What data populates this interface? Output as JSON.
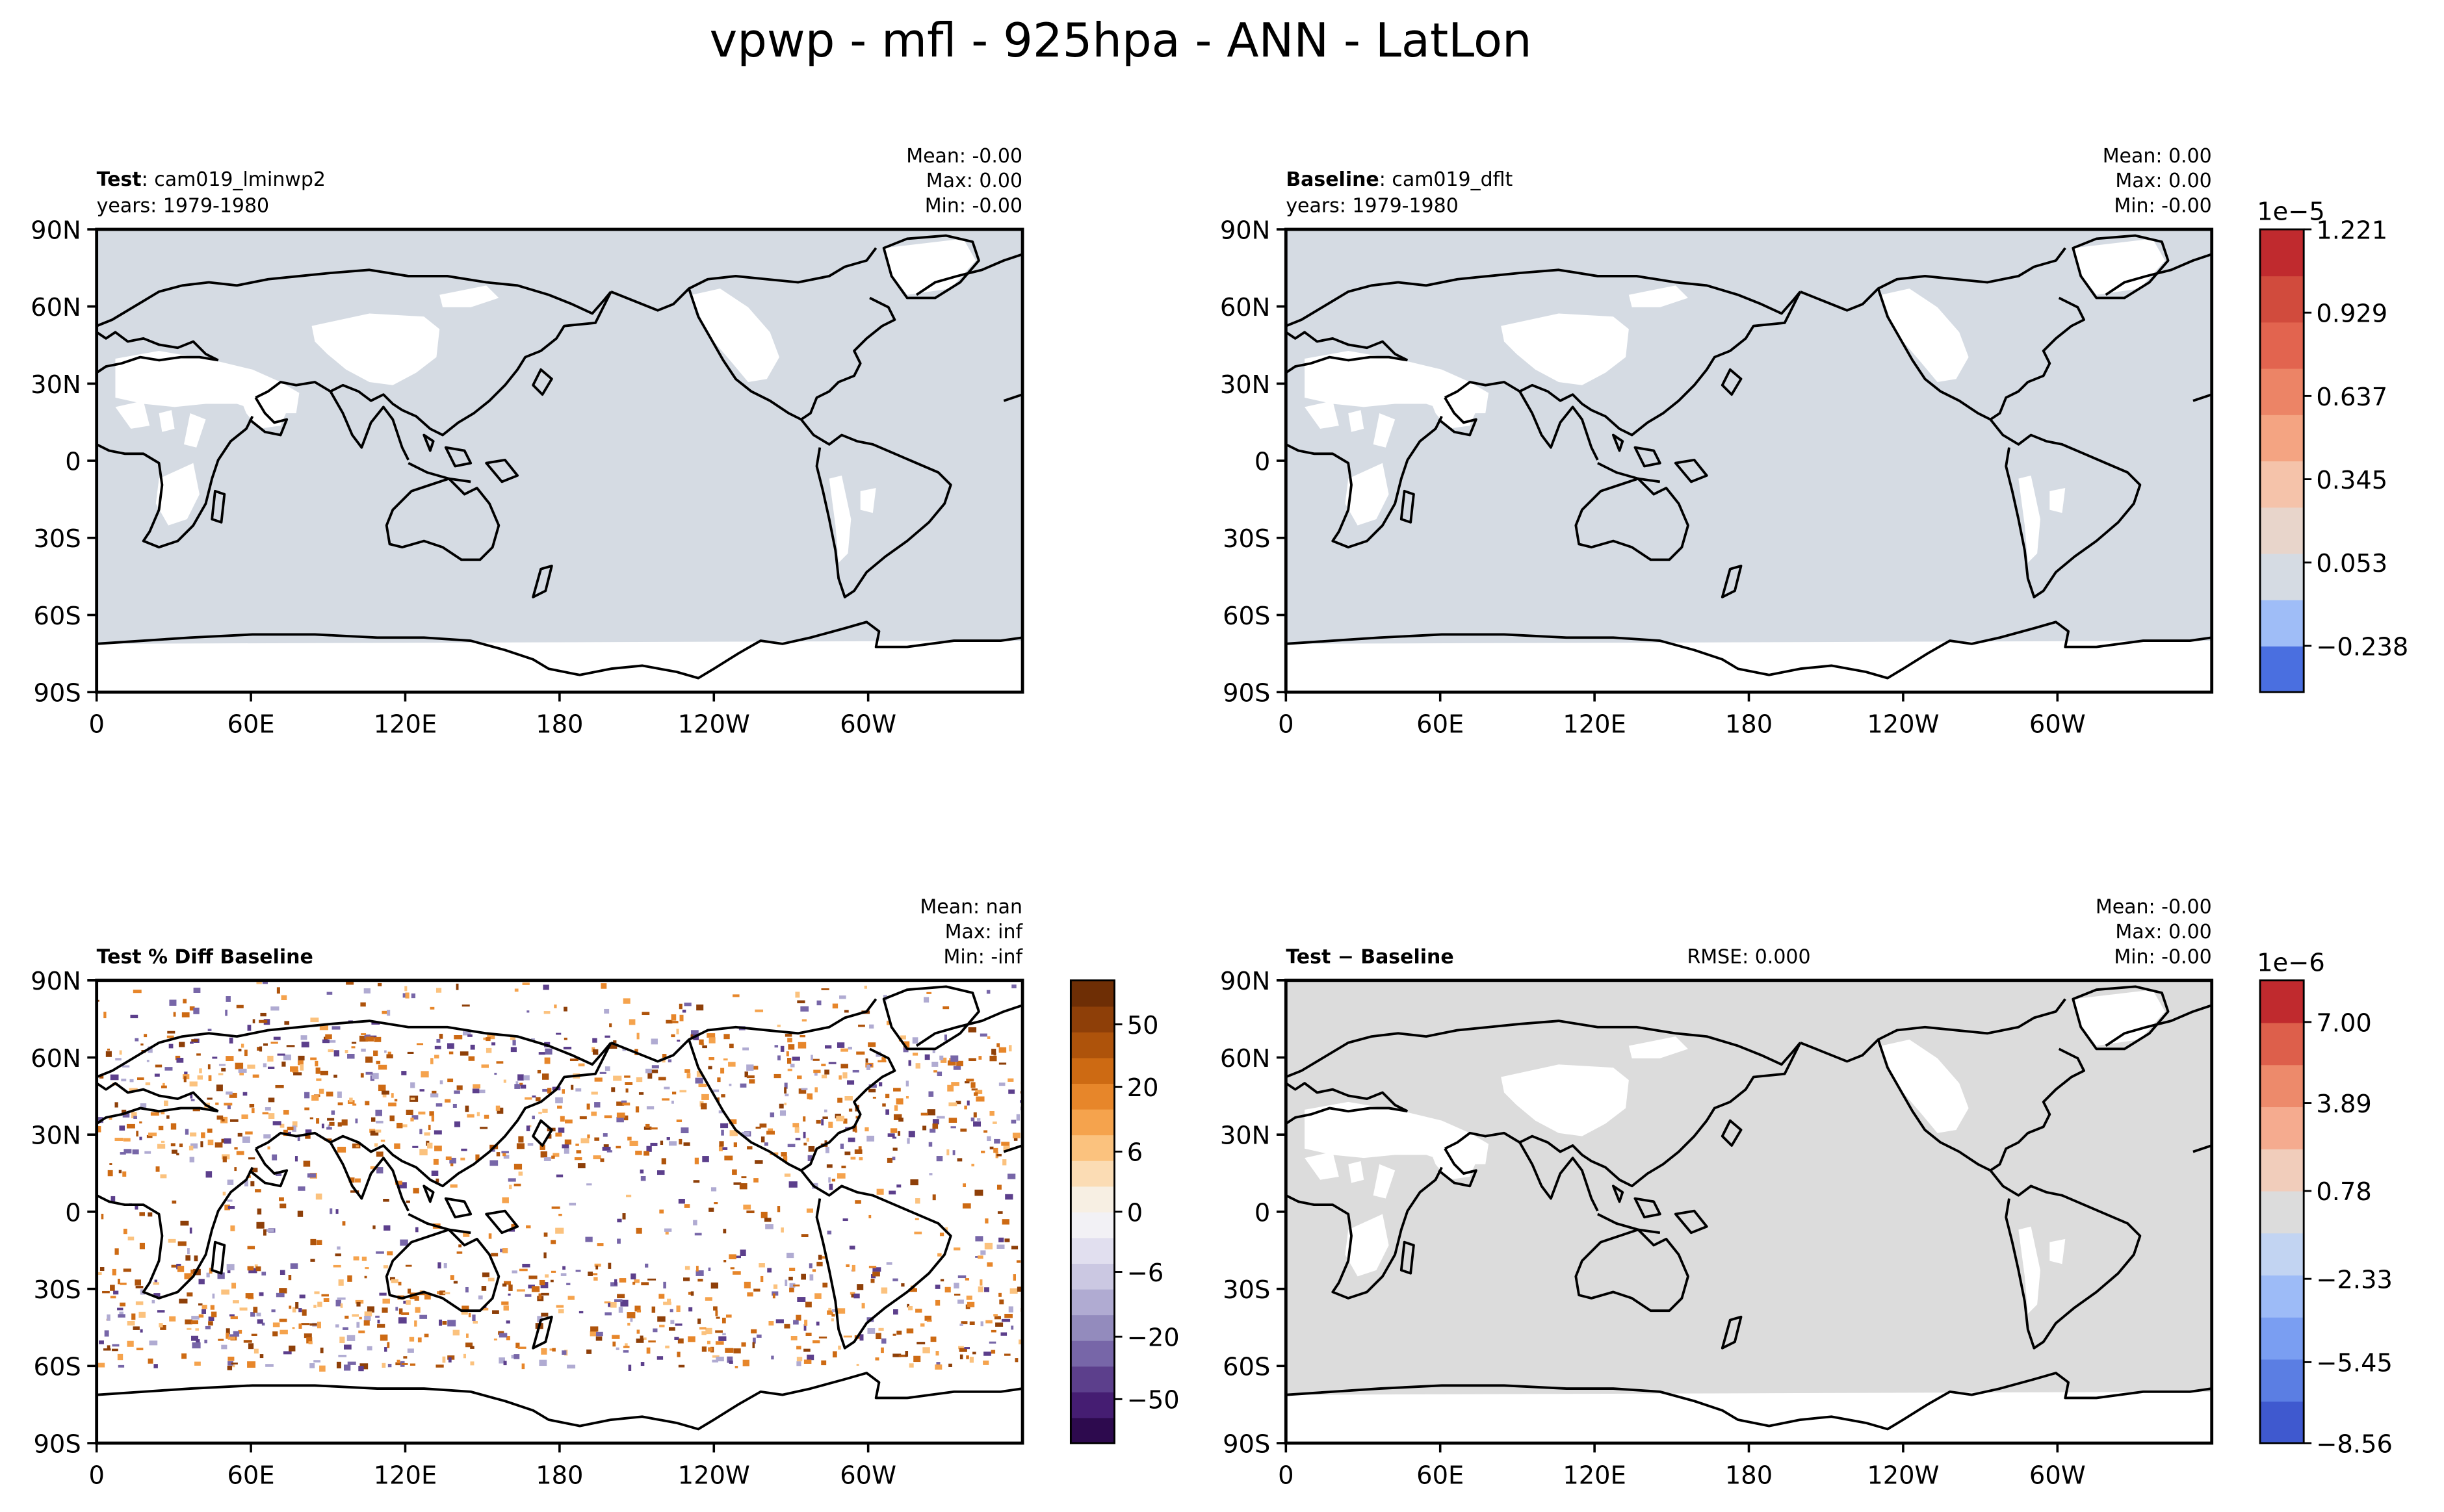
{
  "figure": {
    "title": "vpwp - mfl - 925hpa - ANN - LatLon"
  },
  "axes": {
    "lat_ticks": [
      "90N",
      "60N",
      "30N",
      "0",
      "30S",
      "60S",
      "90S"
    ],
    "lon_ticks": [
      "0",
      "60E",
      "120E",
      "180",
      "120W",
      "60W"
    ]
  },
  "chart_data": [
    {
      "type": "heatmap",
      "panel": "test",
      "label_bold": "Test",
      "label_rest": ": cam019_lminwp2",
      "years": "years: 1979-1980",
      "stats": [
        "Mean: -0.00",
        "Max:  0.00",
        "Min: -0.00"
      ],
      "xlim": [
        0,
        360
      ],
      "ylim": [
        -90,
        90
      ],
      "field_color": "#d5dbe3"
    },
    {
      "type": "heatmap",
      "panel": "baseline",
      "label_bold": "Baseline",
      "label_rest": ": cam019_dflt",
      "years": "years: 1979-1980",
      "stats": [
        "Mean:  0.00",
        "Max:  0.00",
        "Min: -0.00"
      ],
      "xlim": [
        0,
        360
      ],
      "ylim": [
        -90,
        90
      ],
      "field_color": "#d5dbe3",
      "colorbar": {
        "exponent": "1e−5",
        "tick_labels": [
          "1.221",
          "0.929",
          "0.637",
          "0.345",
          "0.053",
          "−0.238"
        ],
        "colors": [
          "#4a6fe0",
          "#9fbdf7",
          "#d5dbe3",
          "#e8d5cb",
          "#f5c3aa",
          "#f4a482",
          "#ec8466",
          "#e2644f",
          "#d14b3d",
          "#c02a2e"
        ]
      }
    },
    {
      "type": "heatmap",
      "panel": "pct_diff",
      "label_bold": "Test % Diff Baseline",
      "stats": [
        "Mean:   nan",
        "Max:   inf",
        "Min:  -inf"
      ],
      "xlim": [
        0,
        360
      ],
      "ylim": [
        -90,
        90
      ],
      "colorbar": {
        "tick_labels": [
          "50",
          "20",
          "6",
          "0",
          "−6",
          "−20",
          "−50"
        ],
        "colors": [
          "#2d0a4e",
          "#451d72",
          "#5c3f8c",
          "#7766a8",
          "#938bbd",
          "#b0abd2",
          "#cbc8e2",
          "#e1dfef",
          "#f2f1f5",
          "#f7efe3",
          "#fbdcb4",
          "#fbc27e",
          "#f5a34d",
          "#e7862a",
          "#cd6a13",
          "#ae530b",
          "#8e3f08",
          "#6e2e05"
        ]
      }
    },
    {
      "type": "heatmap",
      "panel": "difference",
      "label_bold": "Test − Baseline",
      "rmse": "RMSE: 0.000",
      "stats": [
        "Mean: -0.00",
        "Max:  0.00",
        "Min: -0.00"
      ],
      "xlim": [
        0,
        360
      ],
      "ylim": [
        -90,
        90
      ],
      "field_color": "#dcdcdc",
      "colorbar": {
        "exponent": "1e−6",
        "tick_labels": [
          "7.00",
          "3.89",
          "0.78",
          "−2.33",
          "−5.45",
          "−8.56"
        ],
        "colors": [
          "#3f59cf",
          "#5b7ee3",
          "#7a9ef2",
          "#9dbbf7",
          "#c2d4f2",
          "#dcdcdc",
          "#f1cdbb",
          "#f5ab8f",
          "#ed8a6b",
          "#dd5f4b",
          "#c02a2e"
        ]
      }
    }
  ]
}
